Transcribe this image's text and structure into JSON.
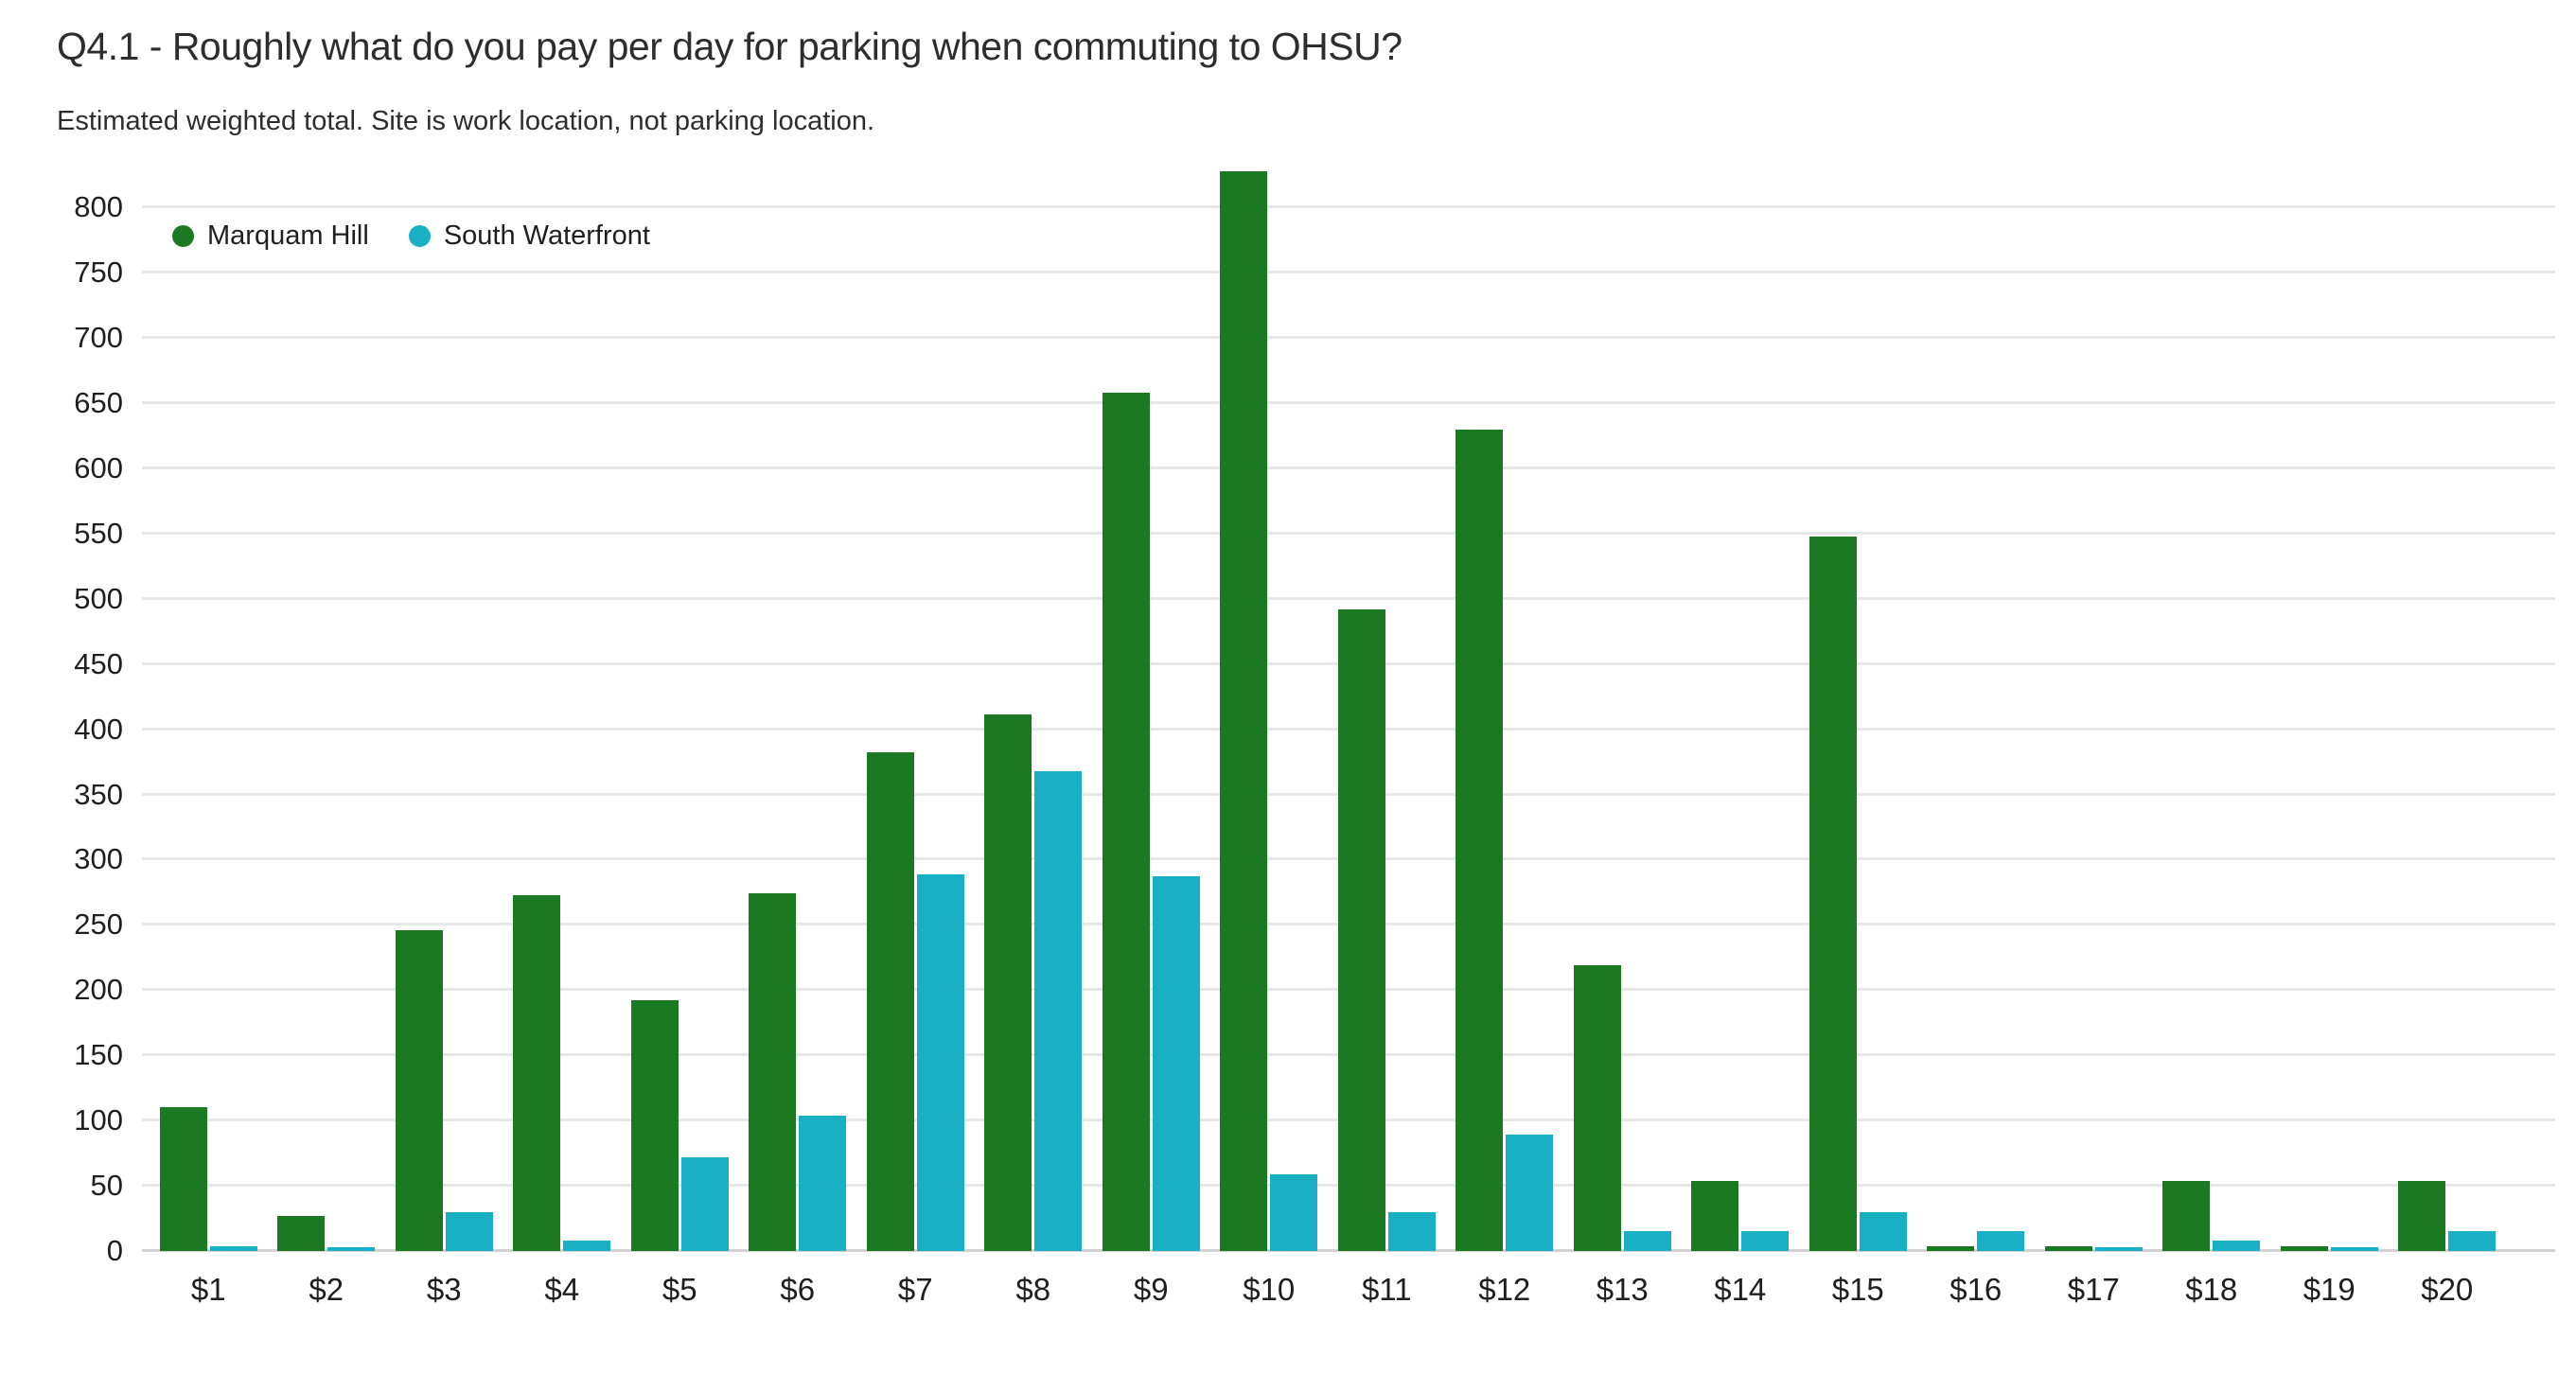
{
  "header": {
    "title": "Q4.1 - Roughly what do you pay per day for parking when commuting to OHSU?",
    "subtitle": "Estimated weighted total. Site is work location, not parking location."
  },
  "colors": {
    "marquam_hill": "#1b7a21",
    "south_waterfront": "#19b0c6",
    "gridline": "#e7e7e7",
    "zero_line": "#d2d2d2",
    "text": "#1f1f1f",
    "title_text": "#2d2d2d",
    "background": "#ffffff"
  },
  "chart_data": {
    "type": "bar",
    "title": "Q4.1 - Roughly what do you pay per day for parking when commuting to OHSU?",
    "subtitle": "Estimated weighted total. Site is work location, not parking location.",
    "xlabel": "",
    "ylabel": "",
    "categories": [
      "$1",
      "$2",
      "$3",
      "$4",
      "$5",
      "$6",
      "$7",
      "$8",
      "$9",
      "$10",
      "$11",
      "$12",
      "$13",
      "$14",
      "$15",
      "$16",
      "$17",
      "$18",
      "$19",
      "$20"
    ],
    "series": [
      {
        "name": "Marquam Hill",
        "color": "#1b7a21",
        "values": [
          110,
          27,
          246,
          273,
          192,
          274,
          382,
          411,
          658,
          828,
          492,
          630,
          219,
          54,
          548,
          4,
          4,
          54,
          4,
          54
        ]
      },
      {
        "name": "South Waterfront",
        "color": "#19b0c6",
        "values": [
          4,
          3,
          30,
          8,
          72,
          104,
          289,
          368,
          287,
          59,
          30,
          89,
          15,
          15,
          30,
          15,
          3,
          8,
          3,
          15
        ]
      }
    ],
    "ylim": [
      0,
      835
    ],
    "yticks": [
      0,
      50,
      100,
      150,
      200,
      250,
      300,
      350,
      400,
      450,
      500,
      550,
      600,
      650,
      700,
      750,
      800
    ],
    "grid": true,
    "legend_position": "inside-top-left"
  }
}
